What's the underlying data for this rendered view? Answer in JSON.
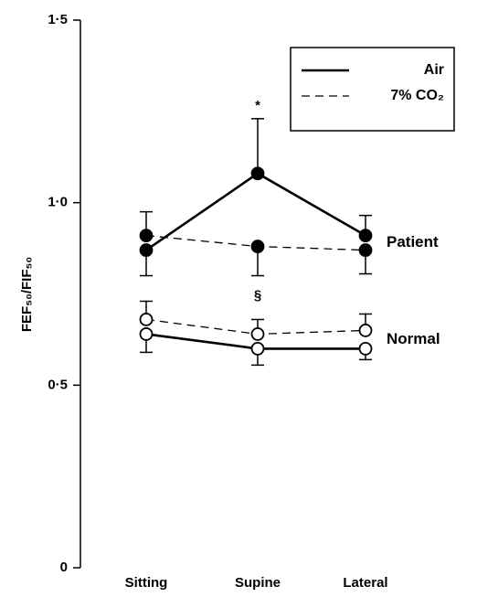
{
  "chart_data": {
    "type": "line",
    "y_label": "FEF₅₀/FIF₅₀",
    "categories": [
      "Sitting",
      "Supine",
      "Lateral"
    ],
    "ylim": [
      0,
      1.5
    ],
    "yticks": [
      0,
      {
        "value": 0.5,
        "label": "0·5"
      },
      {
        "value": 1.0,
        "label": "1·0"
      },
      {
        "value": 1.5,
        "label": "1·5"
      }
    ],
    "color": "#000000",
    "legend_position": "upper right",
    "legend": [
      {
        "name": "Air",
        "dash": "solid"
      },
      {
        "name": "7% CO₂",
        "dash": "dashed"
      }
    ],
    "groups": [
      {
        "name": "Patient",
        "marker": "filled",
        "series": [
          {
            "values": [
              0.87,
              1.08,
              0.91
            ],
            "errors": [
              0.07,
              0.15,
              0.055
            ],
            "error_side": [
              "down",
              "up",
              "up"
            ]
          },
          {
            "values": [
              0.91,
              0.88,
              0.87
            ],
            "errors": [
              0.065,
              0.08,
              0.065
            ],
            "error_side": [
              "up",
              "down",
              "down"
            ]
          }
        ]
      },
      {
        "name": "Normal",
        "marker": "open",
        "series": [
          {
            "values": [
              0.64,
              0.6,
              0.6
            ],
            "errors": [
              0.05,
              0.045,
              0.03
            ],
            "error_side": [
              "down",
              "down",
              "down"
            ]
          },
          {
            "values": [
              0.68,
              0.64,
              0.65
            ],
            "errors": [
              0.05,
              0.04,
              0.045
            ],
            "error_side": [
              "up",
              "up",
              "up"
            ]
          }
        ]
      }
    ],
    "annotations": [
      {
        "text": "*",
        "category": 1,
        "position": "above"
      },
      {
        "text": "§",
        "category": 1,
        "position": "below"
      }
    ]
  }
}
